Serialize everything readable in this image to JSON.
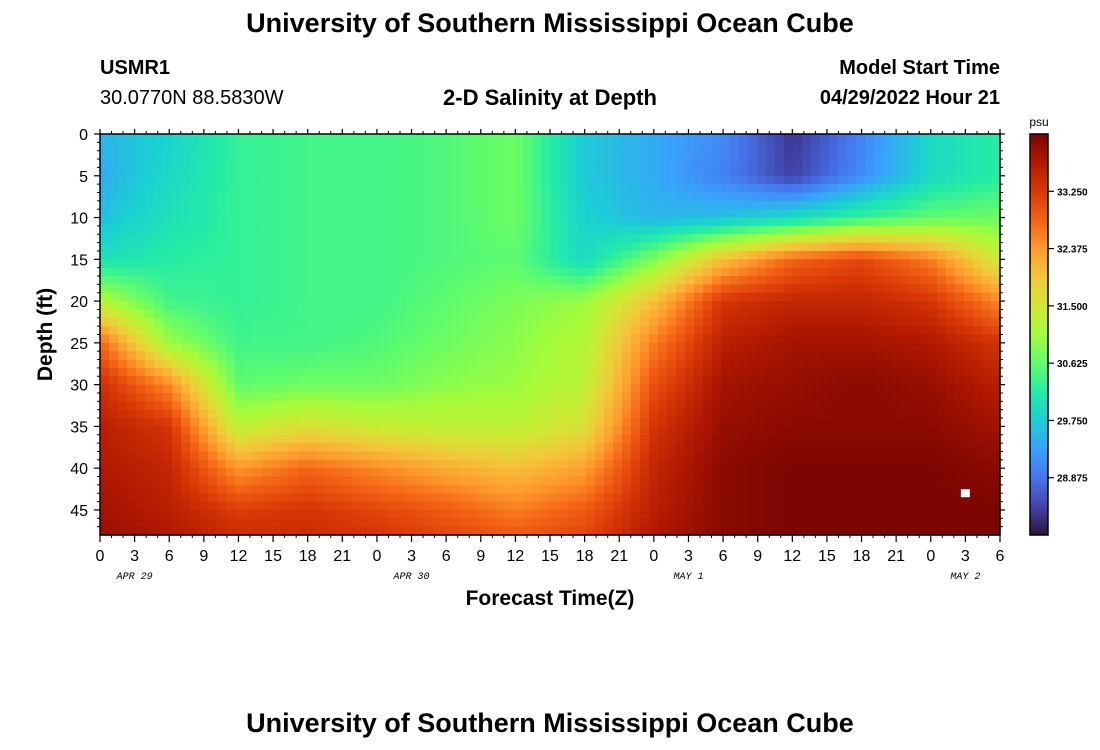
{
  "page": {
    "title_top": "University of Southern Mississippi Ocean Cube",
    "title_bottom": "University of Southern Mississippi Ocean Cube",
    "station": {
      "id": "USMR1",
      "location": "30.0770N  88.5830W"
    },
    "model": {
      "label": "Model Start Time",
      "value": "04/29/2022 Hour 21"
    }
  },
  "chart_data": {
    "type": "heatmap",
    "title": "2-D Salinity at Depth",
    "xlabel": "Forecast Time(Z)",
    "ylabel": "Depth (ft)",
    "ylim": [
      0,
      48
    ],
    "y_ticks": [
      0,
      5,
      10,
      15,
      20,
      25,
      30,
      35,
      40,
      45
    ],
    "x_tick_labels": [
      "0",
      "3",
      "6",
      "9",
      "12",
      "15",
      "18",
      "21",
      "0",
      "3",
      "6",
      "9",
      "12",
      "15",
      "18",
      "21",
      "0",
      "3",
      "6",
      "9",
      "12",
      "15",
      "18",
      "21",
      "0",
      "3",
      "6"
    ],
    "date_labels": [
      "APR 29",
      "APR 30",
      "MAY 1",
      "MAY 2"
    ],
    "colorbar": {
      "unit": "psu",
      "ticks": [
        "33.250",
        "32.375",
        "31.500",
        "30.625",
        "29.750",
        "28.875"
      ],
      "range": [
        28.0,
        34.125
      ]
    },
    "x_hours": [
      0,
      6,
      12,
      18,
      24,
      30,
      36,
      42,
      48,
      54,
      60,
      66,
      72,
      78
    ],
    "depths": [
      0,
      5,
      10,
      15,
      20,
      25,
      30,
      35,
      40,
      45,
      48
    ],
    "values": [
      [
        29.5,
        29.8,
        30.3,
        30.4,
        30.4,
        30.5,
        30.7,
        29.7,
        29.4,
        29.1,
        28.3,
        29.0,
        29.9,
        30.2
      ],
      [
        29.4,
        29.9,
        30.3,
        30.4,
        30.4,
        30.5,
        30.7,
        29.7,
        29.4,
        29.0,
        28.4,
        29.1,
        29.9,
        30.2
      ],
      [
        29.6,
        30.0,
        30.3,
        30.4,
        30.4,
        30.5,
        30.7,
        29.8,
        29.5,
        29.6,
        29.9,
        30.3,
        30.6,
        30.7
      ],
      [
        30.0,
        30.2,
        30.3,
        30.4,
        30.4,
        30.5,
        30.6,
        29.9,
        30.8,
        32.0,
        32.8,
        33.1,
        32.6,
        31.4
      ],
      [
        31.2,
        30.4,
        30.3,
        30.4,
        30.4,
        30.6,
        30.8,
        31.0,
        32.0,
        33.3,
        33.5,
        33.5,
        33.3,
        32.5
      ],
      [
        32.8,
        31.0,
        30.4,
        30.4,
        30.5,
        30.7,
        30.9,
        31.2,
        32.6,
        33.6,
        33.8,
        33.8,
        33.7,
        33.3
      ],
      [
        33.4,
        32.5,
        30.6,
        30.7,
        30.7,
        30.9,
        31.0,
        31.3,
        33.0,
        33.8,
        33.9,
        34.0,
        33.9,
        33.6
      ],
      [
        33.6,
        33.3,
        31.3,
        31.6,
        31.4,
        31.3,
        31.3,
        31.6,
        33.3,
        33.9,
        34.0,
        34.0,
        34.0,
        33.8
      ],
      [
        33.7,
        33.5,
        32.4,
        32.8,
        32.5,
        32.2,
        32.0,
        32.3,
        33.5,
        34.0,
        34.1,
        34.1,
        34.1,
        34.0
      ],
      [
        33.8,
        33.6,
        33.2,
        33.3,
        33.1,
        32.9,
        32.6,
        32.9,
        33.6,
        34.0,
        34.1,
        34.1,
        34.1,
        34.1
      ],
      [
        33.9,
        33.7,
        33.4,
        33.4,
        33.3,
        33.1,
        32.9,
        33.1,
        33.7,
        34.0,
        34.1,
        34.1,
        34.1,
        34.1
      ]
    ],
    "marker": {
      "hour": 75,
      "depth": 43
    },
    "colors": {
      "scale": [
        "#30123b",
        "#4145ab",
        "#4675ed",
        "#39a2fc",
        "#1bcfd4",
        "#24eca6",
        "#61fc6c",
        "#a4fc3b",
        "#d1e834",
        "#f3c63a",
        "#fe9b2d",
        "#f36315",
        "#d93806",
        "#b11901",
        "#7a0402"
      ]
    }
  }
}
